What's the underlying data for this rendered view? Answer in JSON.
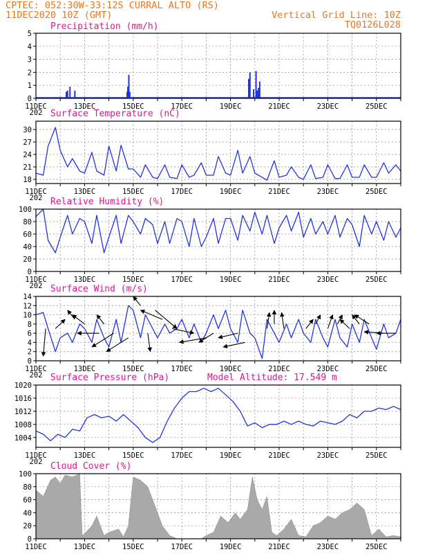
{
  "header": {
    "line1": "CPTEC:  052:30W-33:12S   CURRAL ALTO (RS)",
    "line2_left": "11DEC2020 10Z (GMT)",
    "line2_right": "Vertical Grid Line: 10Z",
    "line3_right": "TQ0126L028"
  },
  "x_axis": {
    "labels": [
      "11DEC",
      "13DEC",
      "15DEC",
      "17DEC",
      "19DEC",
      "21DEC",
      "23DEC",
      "25DEC"
    ],
    "label_days": [
      0,
      2,
      4,
      6,
      8,
      10,
      12,
      14
    ],
    "year_stub": "202",
    "range_days": [
      0,
      15
    ]
  },
  "colors": {
    "line": "#2233dd",
    "bar": "#2233dd",
    "cloud": "#a9a9a9",
    "arrow": "#000000"
  },
  "chart_data": [
    {
      "id": "precip",
      "type": "bar",
      "title": "Precipitation (mm/h)",
      "ylim": [
        0,
        5
      ],
      "yticks": [
        0,
        1,
        2,
        3,
        4,
        5
      ],
      "grid": true,
      "x_days": [
        1.25,
        1.3,
        1.4,
        1.6,
        3.75,
        3.78,
        3.82,
        3.86,
        8.75,
        8.8,
        8.95,
        9.05,
        9.1,
        9.15,
        9.2
      ],
      "values": [
        0.5,
        0.6,
        0.9,
        0.6,
        0.5,
        0.9,
        1.8,
        0.5,
        1.5,
        2.0,
        0.7,
        2.1,
        0.6,
        0.8,
        1.3
      ]
    },
    {
      "id": "temp",
      "type": "line",
      "title": "Surface Temperature (nC)",
      "ylim": [
        17,
        32
      ],
      "yticks": [
        18,
        21,
        24,
        27,
        30
      ],
      "grid": true,
      "x_days": [
        0,
        0.3,
        0.5,
        0.8,
        1.0,
        1.3,
        1.5,
        1.8,
        2.0,
        2.3,
        2.5,
        2.8,
        3.0,
        3.3,
        3.5,
        3.8,
        4.0,
        4.3,
        4.5,
        4.8,
        5.0,
        5.3,
        5.5,
        5.8,
        6.0,
        6.3,
        6.5,
        6.8,
        7.0,
        7.3,
        7.5,
        7.8,
        8.0,
        8.3,
        8.5,
        8.8,
        9.0,
        9.3,
        9.5,
        9.8,
        10.0,
        10.3,
        10.5,
        10.8,
        11.0,
        11.3,
        11.5,
        11.8,
        12.0,
        12.3,
        12.5,
        12.8,
        13.0,
        13.3,
        13.5,
        13.8,
        14.0,
        14.3,
        14.5,
        14.8,
        15.0
      ],
      "values": [
        19.5,
        19.0,
        26.0,
        30.5,
        25.0,
        21.0,
        23.0,
        20.0,
        19.5,
        24.5,
        20.0,
        19.0,
        26.0,
        20.0,
        26.2,
        20.5,
        20.5,
        18.5,
        21.5,
        18.5,
        18.2,
        21.5,
        18.5,
        18.2,
        21.5,
        18.5,
        19.0,
        22.0,
        19.0,
        19.0,
        23.5,
        19.5,
        19.0,
        25.0,
        19.5,
        23.5,
        19.5,
        18.5,
        17.8,
        22.5,
        18.5,
        19.0,
        21.0,
        18.5,
        18.0,
        21.5,
        18.2,
        18.5,
        21.5,
        18.2,
        18.2,
        21.5,
        18.5,
        18.5,
        21.5,
        18.5,
        18.5,
        22.0,
        19.5,
        21.5,
        20.0
      ]
    },
    {
      "id": "rh",
      "type": "line",
      "title": "Relative Humidity (%)",
      "ylim": [
        0,
        100
      ],
      "yticks": [
        0,
        20,
        40,
        60,
        80,
        100
      ],
      "grid": true,
      "x_days": [
        0,
        0.3,
        0.5,
        0.8,
        1.0,
        1.3,
        1.5,
        1.8,
        2.0,
        2.3,
        2.5,
        2.8,
        3.0,
        3.3,
        3.5,
        3.8,
        4.0,
        4.3,
        4.5,
        4.8,
        5.0,
        5.3,
        5.5,
        5.8,
        6.0,
        6.3,
        6.5,
        6.8,
        7.0,
        7.3,
        7.5,
        7.8,
        8.0,
        8.3,
        8.5,
        8.8,
        9.0,
        9.3,
        9.5,
        9.8,
        10.0,
        10.3,
        10.5,
        10.8,
        11.0,
        11.3,
        11.5,
        11.8,
        12.0,
        12.3,
        12.5,
        12.8,
        13.0,
        13.3,
        13.5,
        13.8,
        14.0,
        14.3,
        14.5,
        14.8,
        15.0
      ],
      "values": [
        88,
        100,
        50,
        30,
        55,
        90,
        60,
        85,
        80,
        45,
        90,
        30,
        55,
        90,
        45,
        90,
        80,
        60,
        85,
        75,
        45,
        80,
        45,
        85,
        80,
        40,
        85,
        40,
        55,
        85,
        45,
        85,
        85,
        50,
        90,
        65,
        95,
        60,
        90,
        45,
        70,
        90,
        65,
        95,
        55,
        85,
        60,
        80,
        60,
        90,
        55,
        85,
        75,
        40,
        90,
        60,
        80,
        50,
        80,
        55,
        70
      ]
    },
    {
      "id": "wind",
      "type": "line",
      "title": "Surface Wind (m/s)",
      "ylim": [
        0,
        14
      ],
      "yticks": [
        0,
        2,
        4,
        6,
        8,
        10,
        12,
        14
      ],
      "grid": true,
      "x_days": [
        0,
        0.3,
        0.5,
        0.8,
        1.0,
        1.3,
        1.5,
        1.8,
        2.0,
        2.3,
        2.5,
        2.8,
        3.0,
        3.3,
        3.5,
        3.8,
        4.0,
        4.3,
        4.5,
        4.8,
        5.0,
        5.3,
        5.5,
        5.8,
        6.0,
        6.3,
        6.5,
        6.8,
        7.0,
        7.3,
        7.5,
        7.8,
        8.0,
        8.3,
        8.5,
        8.8,
        9.0,
        9.3,
        9.5,
        9.8,
        10.0,
        10.3,
        10.5,
        10.8,
        11.0,
        11.3,
        11.5,
        11.8,
        12.0,
        12.3,
        12.5,
        12.8,
        13.0,
        13.3,
        13.5,
        13.8,
        14.0,
        14.3,
        14.5,
        14.8,
        15.0
      ],
      "values": [
        10,
        10.5,
        7,
        2,
        5,
        6,
        4,
        8,
        7,
        4,
        9,
        5,
        3,
        9,
        4,
        12,
        11,
        5,
        10,
        7,
        5,
        8,
        6,
        7,
        9,
        5,
        8,
        4,
        6,
        10,
        7,
        11,
        7,
        4,
        11,
        6,
        5,
        0.5,
        9,
        6,
        4,
        8,
        5,
        9,
        6,
        4,
        9,
        5,
        3,
        9,
        5,
        3,
        8,
        4,
        9,
        5,
        2.5,
        8,
        5,
        6,
        9
      ],
      "direction_arrows": [
        {
          "x": 0.4,
          "y": 7,
          "dx": -0.1,
          "dy": -6
        },
        {
          "x": 0.8,
          "y": 7,
          "dx": 0.4,
          "dy": 2
        },
        {
          "x": 1.6,
          "y": 9,
          "dx": -0.3,
          "dy": 2
        },
        {
          "x": 2.0,
          "y": 8,
          "dx": -0.5,
          "dy": 2
        },
        {
          "x": 2.6,
          "y": 6,
          "dx": -0.9,
          "dy": 0
        },
        {
          "x": 2.8,
          "y": 8,
          "dx": -0.3,
          "dy": 2
        },
        {
          "x": 3.2,
          "y": 6,
          "dx": -0.9,
          "dy": -3
        },
        {
          "x": 3.8,
          "y": 5,
          "dx": -0.9,
          "dy": -3
        },
        {
          "x": 4.3,
          "y": 12,
          "dx": -0.3,
          "dy": 2
        },
        {
          "x": 4.6,
          "y": 6,
          "dx": 0.1,
          "dy": -4
        },
        {
          "x": 4.9,
          "y": 11,
          "dx": 0.9,
          "dy": -4
        },
        {
          "x": 5.2,
          "y": 9,
          "dx": -0.9,
          "dy": 2
        },
        {
          "x": 5.6,
          "y": 7,
          "dx": 0.9,
          "dy": -1
        },
        {
          "x": 7.0,
          "y": 5,
          "dx": -1.1,
          "dy": -1
        },
        {
          "x": 7.3,
          "y": 6,
          "dx": -0.6,
          "dy": -2
        },
        {
          "x": 8.3,
          "y": 6,
          "dx": -0.8,
          "dy": -1
        },
        {
          "x": 8.6,
          "y": 4,
          "dx": -0.9,
          "dy": -1
        },
        {
          "x": 9.5,
          "y": 7,
          "dx": 0.1,
          "dy": 3.5
        },
        {
          "x": 9.8,
          "y": 8,
          "dx": 0,
          "dy": 3
        },
        {
          "x": 10.2,
          "y": 7,
          "dx": -0.1,
          "dy": 3.5
        },
        {
          "x": 11.1,
          "y": 7,
          "dx": 0.3,
          "dy": 2
        },
        {
          "x": 11.5,
          "y": 8,
          "dx": 0.2,
          "dy": 2
        },
        {
          "x": 12.0,
          "y": 7,
          "dx": 0.2,
          "dy": 3
        },
        {
          "x": 12.4,
          "y": 8,
          "dx": 0.2,
          "dy": 2
        },
        {
          "x": 12.9,
          "y": 7,
          "dx": -0.4,
          "dy": 2
        },
        {
          "x": 13.3,
          "y": 8,
          "dx": -0.3,
          "dy": 2
        },
        {
          "x": 13.7,
          "y": 8,
          "dx": -0.6,
          "dy": 2
        },
        {
          "x": 14.3,
          "y": 6,
          "dx": -0.8,
          "dy": 0.3
        },
        {
          "x": 14.8,
          "y": 6,
          "dx": -0.8,
          "dy": 0
        }
      ]
    },
    {
      "id": "pressure",
      "type": "line",
      "title": "Surface Pressure (hPa)",
      "annotation": "Model Altitude: 17.549  m",
      "ylim": [
        1001,
        1020
      ],
      "yticks": [
        1004,
        1008,
        1012,
        1016,
        1020
      ],
      "grid": true,
      "x_days": [
        0,
        0.3,
        0.6,
        0.9,
        1.2,
        1.5,
        1.8,
        2.1,
        2.4,
        2.7,
        3.0,
        3.3,
        3.6,
        3.9,
        4.2,
        4.5,
        4.8,
        5.1,
        5.4,
        5.7,
        6.0,
        6.3,
        6.6,
        6.9,
        7.2,
        7.5,
        7.8,
        8.1,
        8.4,
        8.7,
        9.0,
        9.3,
        9.6,
        9.9,
        10.2,
        10.5,
        10.8,
        11.1,
        11.4,
        11.7,
        12.0,
        12.3,
        12.6,
        12.9,
        13.2,
        13.5,
        13.8,
        14.1,
        14.4,
        14.7,
        15.0
      ],
      "values": [
        1006,
        1005,
        1003,
        1005,
        1004,
        1006.5,
        1006,
        1010,
        1011,
        1010,
        1010.5,
        1009,
        1011,
        1009,
        1007,
        1004,
        1002.5,
        1004,
        1009,
        1013,
        1016,
        1018,
        1018,
        1019,
        1018,
        1019,
        1017,
        1015,
        1012,
        1007.5,
        1008.5,
        1007,
        1008,
        1008,
        1009,
        1008,
        1009,
        1008,
        1007.5,
        1009,
        1008.5,
        1008,
        1009,
        1011,
        1010,
        1012,
        1012,
        1013,
        1012.5,
        1013.5,
        1012.5
      ]
    },
    {
      "id": "cloud",
      "type": "area",
      "title": "Cloud Cover (%)",
      "ylim": [
        0,
        100
      ],
      "yticks": [
        0,
        20,
        40,
        60,
        80,
        100
      ],
      "grid": true,
      "x_days": [
        0,
        0.3,
        0.6,
        0.8,
        1.0,
        1.2,
        1.5,
        1.8,
        1.9,
        2.0,
        2.3,
        2.5,
        2.8,
        3.0,
        3.4,
        3.6,
        3.8,
        4.0,
        4.3,
        4.6,
        4.9,
        5.2,
        5.5,
        5.8,
        6.0,
        6.4,
        6.8,
        7.0,
        7.3,
        7.6,
        7.9,
        8.2,
        8.4,
        8.7,
        8.9,
        9.1,
        9.3,
        9.5,
        9.7,
        9.9,
        10.2,
        10.5,
        10.8,
        11.1,
        11.4,
        11.7,
        12.0,
        12.3,
        12.6,
        12.9,
        13.2,
        13.5,
        13.8,
        14.1,
        14.4,
        14.7,
        15.0
      ],
      "values": [
        75,
        65,
        90,
        95,
        85,
        98,
        95,
        100,
        5,
        8,
        20,
        35,
        5,
        10,
        15,
        3,
        20,
        95,
        90,
        80,
        50,
        20,
        5,
        0,
        0,
        0,
        0,
        5,
        10,
        35,
        25,
        40,
        30,
        45,
        95,
        60,
        45,
        65,
        10,
        5,
        15,
        30,
        5,
        3,
        20,
        25,
        35,
        30,
        40,
        45,
        55,
        45,
        5,
        15,
        3,
        5,
        3
      ]
    }
  ]
}
